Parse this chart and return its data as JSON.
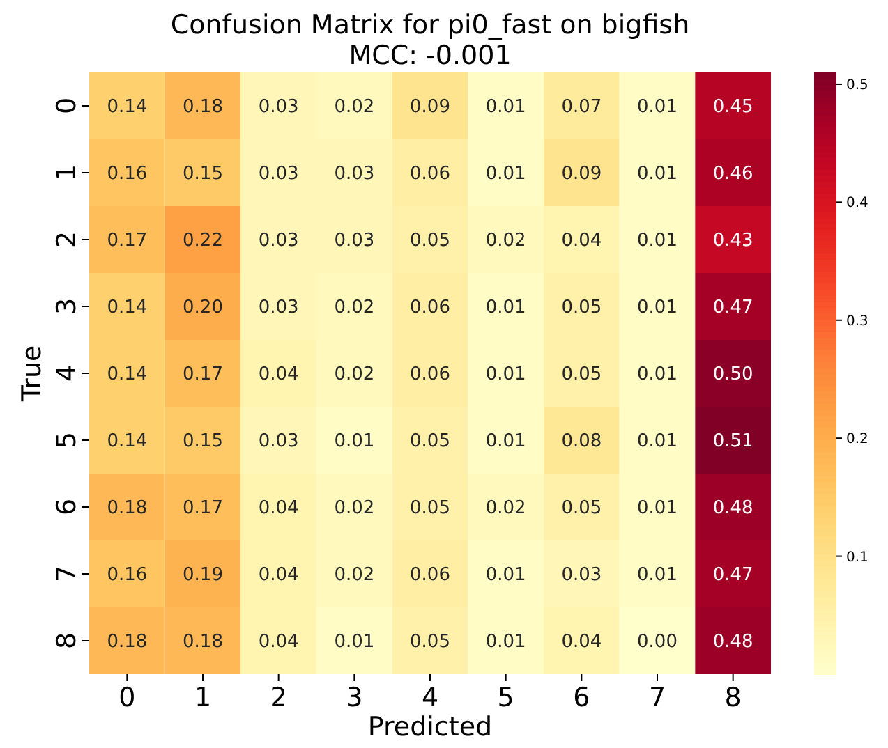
{
  "chart_data": {
    "type": "heatmap",
    "title": "Confusion Matrix for pi0_fast on bigfish",
    "subtitle": "MCC: -0.001",
    "xlabel": "Predicted",
    "ylabel": "True",
    "categories": [
      "0",
      "1",
      "2",
      "3",
      "4",
      "5",
      "6",
      "7",
      "8"
    ],
    "y_categories": [
      "0",
      "1",
      "2",
      "3",
      "4",
      "5",
      "6",
      "7",
      "8"
    ],
    "cells": [
      [
        0.14,
        0.18,
        0.03,
        0.02,
        0.09,
        0.01,
        0.07,
        0.01,
        0.45
      ],
      [
        0.16,
        0.15,
        0.03,
        0.03,
        0.06,
        0.01,
        0.09,
        0.01,
        0.46
      ],
      [
        0.17,
        0.22,
        0.03,
        0.03,
        0.05,
        0.02,
        0.04,
        0.01,
        0.43
      ],
      [
        0.14,
        0.2,
        0.03,
        0.02,
        0.06,
        0.01,
        0.05,
        0.01,
        0.47
      ],
      [
        0.14,
        0.17,
        0.04,
        0.02,
        0.06,
        0.01,
        0.05,
        0.01,
        0.5
      ],
      [
        0.14,
        0.15,
        0.03,
        0.01,
        0.05,
        0.01,
        0.08,
        0.01,
        0.51
      ],
      [
        0.18,
        0.17,
        0.04,
        0.02,
        0.05,
        0.02,
        0.05,
        0.01,
        0.48
      ],
      [
        0.16,
        0.19,
        0.04,
        0.02,
        0.06,
        0.01,
        0.03,
        0.01,
        0.47
      ],
      [
        0.18,
        0.18,
        0.04,
        0.01,
        0.05,
        0.01,
        0.04,
        0.0,
        0.48
      ]
    ],
    "cell_labels": [
      [
        "0.14",
        "0.18",
        "0.03",
        "0.02",
        "0.09",
        "0.01",
        "0.07",
        "0.01",
        "0.45"
      ],
      [
        "0.16",
        "0.15",
        "0.03",
        "0.03",
        "0.06",
        "0.01",
        "0.09",
        "0.01",
        "0.46"
      ],
      [
        "0.17",
        "0.22",
        "0.03",
        "0.03",
        "0.05",
        "0.02",
        "0.04",
        "0.01",
        "0.43"
      ],
      [
        "0.14",
        "0.20",
        "0.03",
        "0.02",
        "0.06",
        "0.01",
        "0.05",
        "0.01",
        "0.47"
      ],
      [
        "0.14",
        "0.17",
        "0.04",
        "0.02",
        "0.06",
        "0.01",
        "0.05",
        "0.01",
        "0.50"
      ],
      [
        "0.14",
        "0.15",
        "0.03",
        "0.01",
        "0.05",
        "0.01",
        "0.08",
        "0.01",
        "0.51"
      ],
      [
        "0.18",
        "0.17",
        "0.04",
        "0.02",
        "0.05",
        "0.02",
        "0.05",
        "0.01",
        "0.48"
      ],
      [
        "0.16",
        "0.19",
        "0.04",
        "0.02",
        "0.06",
        "0.01",
        "0.03",
        "0.01",
        "0.47"
      ],
      [
        "0.18",
        "0.18",
        "0.04",
        "0.01",
        "0.05",
        "0.01",
        "0.04",
        "0.00",
        "0.48"
      ]
    ],
    "clim": [
      0,
      0.51
    ],
    "cticks": [
      0.1,
      0.2,
      0.3,
      0.4,
      0.5
    ],
    "data_labels": true
  }
}
